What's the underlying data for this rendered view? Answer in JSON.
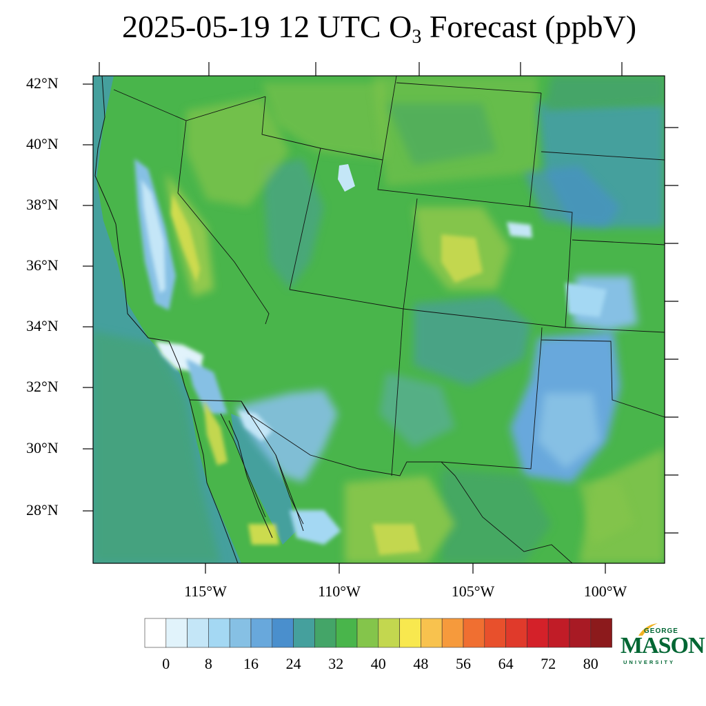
{
  "title": {
    "prefix": "2025-05-19 12 UTC O",
    "subscript": "3",
    "suffix": " Forecast (ppbV)"
  },
  "map": {
    "projection": "lambert-conformal",
    "lat_labels": [
      "42°N",
      "40°N",
      "38°N",
      "36°N",
      "34°N",
      "32°N",
      "30°N",
      "28°N"
    ],
    "lon_labels": [
      "115°W",
      "110°W",
      "105°W",
      "100°W"
    ],
    "field": "ozone concentration",
    "units": "ppbV"
  },
  "colorbar": {
    "colors": [
      "#ffffff",
      "#e1f3fb",
      "#c4e6f7",
      "#a4d8f3",
      "#86c0e4",
      "#68a8dc",
      "#4a8fcd",
      "#45a09d",
      "#44a568",
      "#49b54b",
      "#84c54b",
      "#c3d74f",
      "#f8e84f",
      "#f8c24e",
      "#f69a3c",
      "#f06f31",
      "#e8502c",
      "#e03a2b",
      "#d42129",
      "#c11c27",
      "#a81a24",
      "#8c1a1c"
    ],
    "tick_labels": [
      "0",
      "8",
      "16",
      "24",
      "32",
      "40",
      "48",
      "56",
      "64",
      "72",
      "80"
    ]
  },
  "logo": {
    "line1": "GEORGE",
    "line2": "MASON",
    "line3": "UNIVERSITY",
    "color": "#006633"
  }
}
